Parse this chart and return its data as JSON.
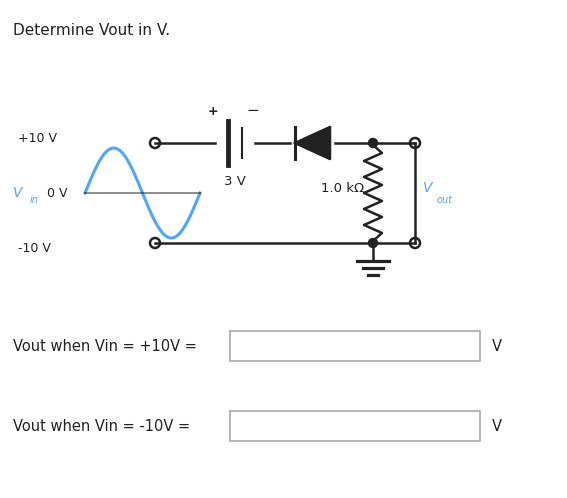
{
  "title": "Determine Vout in V.",
  "title_fontsize": 11,
  "title_color": "#222222",
  "background_color": "#ffffff",
  "circuit_color": "#222222",
  "vin_color": "#4da6ff",
  "label1": "+10 V",
  "label2": "0 V",
  "label3": "-10 V",
  "label_vin": "V",
  "label_vin_sub": "in",
  "label_battery": "3 V",
  "label_resistor": "1.0 kΩ",
  "label_vout": "V",
  "label_vout_sub": "out",
  "question1": "Vout when Vin = +10V =",
  "question2": "Vout when Vin = -10V =",
  "unit": "V"
}
